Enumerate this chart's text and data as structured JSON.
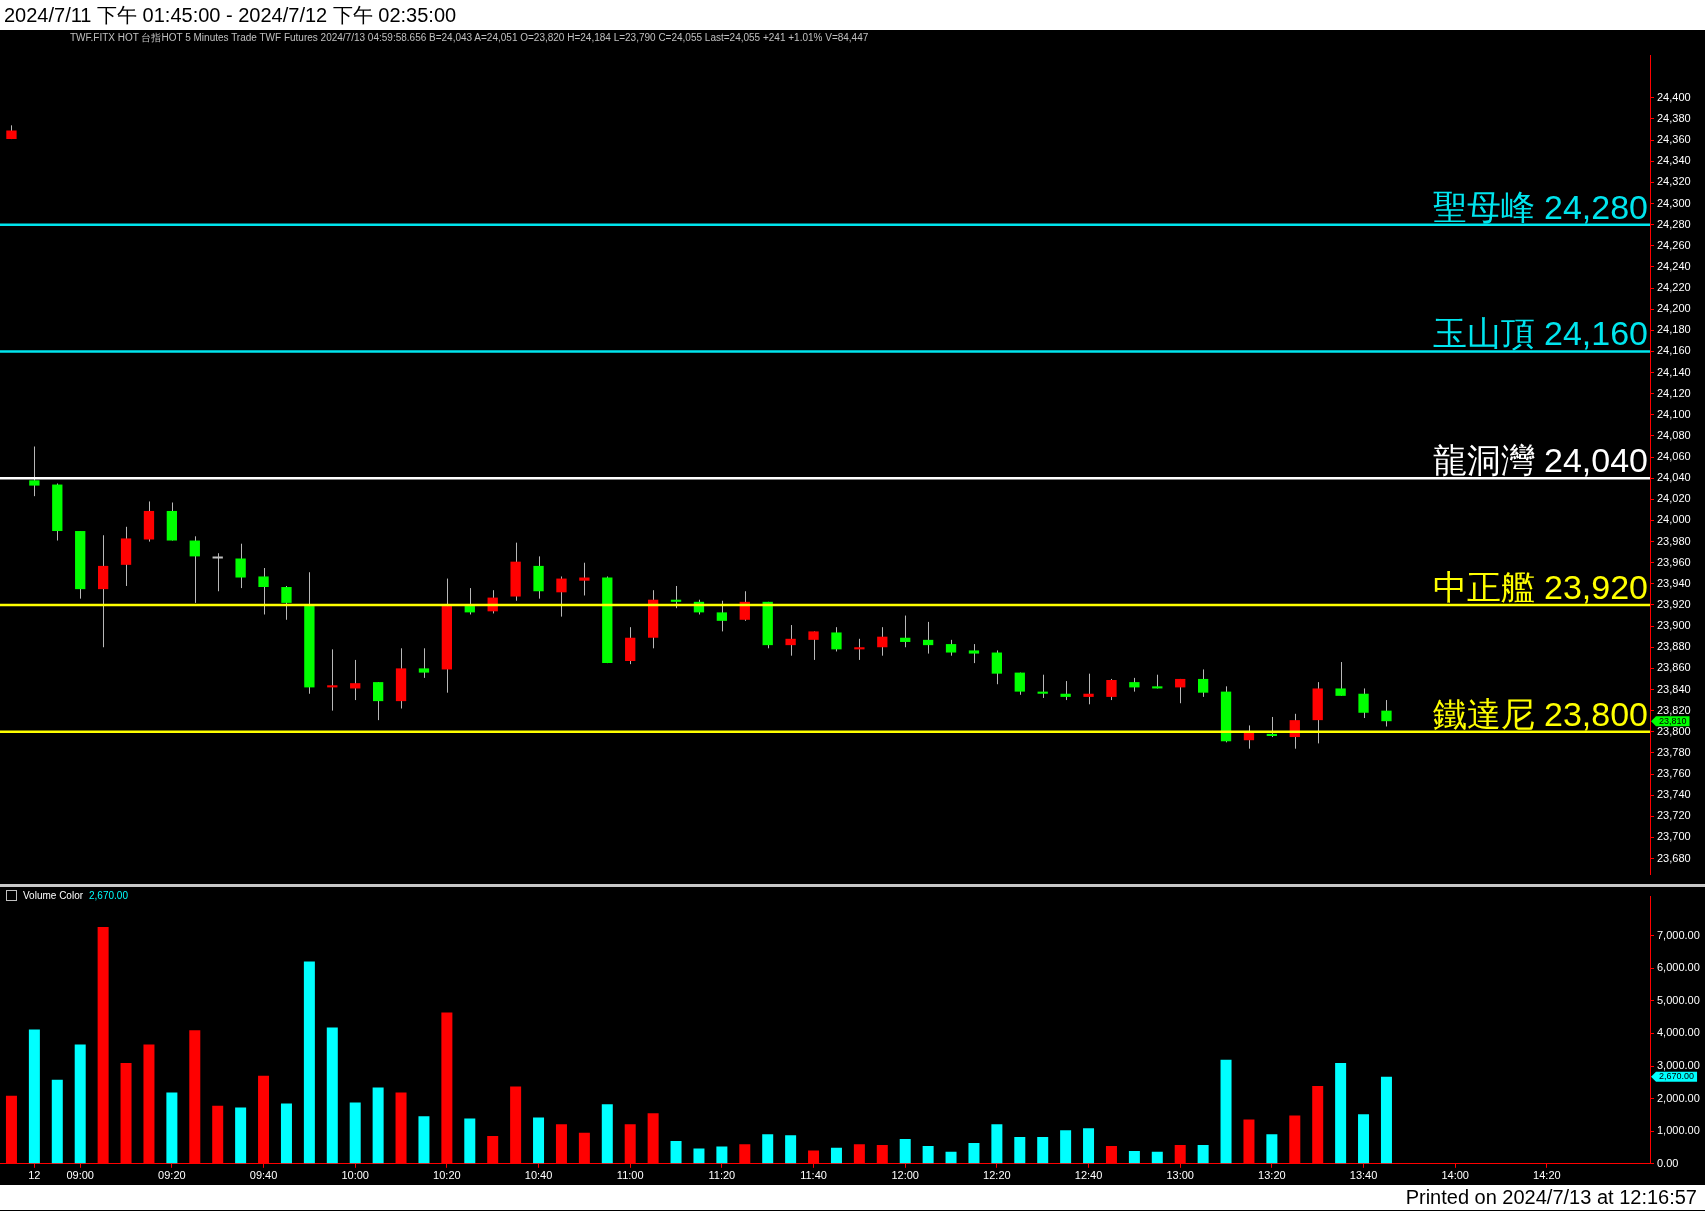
{
  "chart_data": [
    {
      "type": "candlestick",
      "title": "2024/7/11 下午 01:45:00 - 2024/7/12 下午 02:35:00",
      "subtitle": "TWF.FITX HOT 台指HOT 5 Minutes Trade TWF Futures 2024/7/13 04:59:58.656 B=24,043 A=24,051 O=23,820 H=24,184 L=23,790 C=24,055 Last=24,055 +241 +1.01% V=84,447",
      "categories": [
        null,
        null,
        null,
        null,
        null,
        null,
        null,
        null,
        null,
        null,
        null,
        null,
        null,
        null,
        null,
        null,
        null,
        null,
        null,
        null,
        null,
        null,
        null,
        null,
        null,
        null,
        null,
        null,
        null,
        null,
        null,
        null,
        null,
        null,
        null,
        null,
        null,
        null,
        null,
        null,
        null,
        null,
        null,
        null,
        null,
        null,
        null,
        null,
        null,
        null,
        null,
        null,
        null,
        null,
        null,
        null,
        null,
        null,
        null,
        null,
        null,
        null,
        null,
        null,
        null,
        null,
        null,
        null,
        null,
        null,
        null,
        null
      ],
      "ohlc": [
        [
          24361,
          24374,
          24361,
          24369
        ],
        [
          24038,
          24070,
          24023,
          24033
        ],
        [
          24034,
          24035,
          23981,
          23990
        ],
        [
          23990,
          23990,
          23926,
          23935
        ],
        [
          23935,
          23986,
          23880,
          23957
        ],
        [
          23958,
          23994,
          23938,
          23983
        ],
        [
          23982,
          24018,
          23980,
          24009
        ],
        [
          24009,
          24017,
          23981,
          23981
        ],
        [
          23981,
          23985,
          23922,
          23966
        ],
        [
          23964,
          23969,
          23933,
          23964
        ],
        [
          23964,
          23978,
          23936,
          23946
        ],
        [
          23947,
          23955,
          23911,
          23937
        ],
        [
          23937,
          23938,
          23906,
          23922
        ],
        [
          23919,
          23951,
          23836,
          23842
        ],
        [
          23842,
          23878,
          23820,
          23844
        ],
        [
          23841,
          23868,
          23830,
          23846
        ],
        [
          23847,
          23847,
          23811,
          23829
        ],
        [
          23829,
          23879,
          23822,
          23860
        ],
        [
          23860,
          23879,
          23851,
          23856
        ],
        [
          23859,
          23945,
          23837,
          23919
        ],
        [
          23919,
          23936,
          23911,
          23913
        ],
        [
          23914,
          23934,
          23912,
          23927
        ],
        [
          23928,
          23979,
          23924,
          23961
        ],
        [
          23957,
          23966,
          23926,
          23933
        ],
        [
          23932,
          23947,
          23909,
          23945
        ],
        [
          23943,
          23960,
          23929,
          23946
        ],
        [
          23946,
          23947,
          23865,
          23865
        ],
        [
          23867,
          23899,
          23864,
          23889
        ],
        [
          23889,
          23934,
          23879,
          23925
        ],
        [
          23925,
          23938,
          23917,
          23923
        ],
        [
          23923,
          23925,
          23911,
          23913
        ],
        [
          23913,
          23924,
          23895,
          23905
        ],
        [
          23906,
          23933,
          23905,
          23923
        ],
        [
          23923,
          23923,
          23879,
          23882
        ],
        [
          23882,
          23901,
          23872,
          23888
        ],
        [
          23887,
          23895,
          23868,
          23895
        ],
        [
          23894,
          23899,
          23876,
          23878
        ],
        [
          23878,
          23888,
          23868,
          23880
        ],
        [
          23880,
          23899,
          23872,
          23890
        ],
        [
          23889,
          23910,
          23880,
          23885
        ],
        [
          23887,
          23904,
          23874,
          23882
        ],
        [
          23883,
          23887,
          23872,
          23875
        ],
        [
          23877,
          23883,
          23865,
          23874
        ],
        [
          23875,
          23877,
          23845,
          23855
        ],
        [
          23856,
          23856,
          23835,
          23838
        ],
        [
          23838,
          23854,
          23832,
          23836
        ],
        [
          23836,
          23848,
          23830,
          23833
        ],
        [
          23833,
          23855,
          23826,
          23836
        ],
        [
          23833,
          23850,
          23830,
          23849
        ],
        [
          23847,
          23851,
          23838,
          23842
        ],
        [
          23843,
          23854,
          23841,
          23841
        ],
        [
          23842,
          23850,
          23827,
          23850
        ],
        [
          23850,
          23859,
          23833,
          23837
        ],
        [
          23838,
          23843,
          23790,
          23791
        ],
        [
          23792,
          23806,
          23784,
          23799
        ],
        [
          23798,
          23814,
          23795,
          23796
        ],
        [
          23795,
          23817,
          23784,
          23811
        ],
        [
          23811,
          23847,
          23789,
          23841
        ],
        [
          23841,
          23866,
          23834,
          23834
        ],
        [
          23836,
          23841,
          23813,
          23818
        ],
        [
          23820,
          23830,
          23805,
          23810
        ],
        null,
        null,
        null,
        null,
        null,
        null,
        null,
        null,
        null,
        null,
        null
      ],
      "colors": [
        "#ff0000",
        "#00ff00",
        "#00ff00",
        "#00ff00",
        "#ff0000",
        "#ff0000",
        "#ff0000",
        "#00ff00",
        "#00ff00",
        "#c0c0c0",
        "#00ff00",
        "#00ff00",
        "#00ff00",
        "#00ff00",
        "#ff0000",
        "#ff0000",
        "#00ff00",
        "#ff0000",
        "#00ff00",
        "#ff0000",
        "#00ff00",
        "#ff0000",
        "#ff0000",
        "#00ff00",
        "#ff0000",
        "#ff0000",
        "#00ff00",
        "#ff0000",
        "#ff0000",
        "#00ff00",
        "#00ff00",
        "#00ff00",
        "#ff0000",
        "#00ff00",
        "#ff0000",
        "#ff0000",
        "#00ff00",
        "#ff0000",
        "#ff0000",
        "#00ff00",
        "#00ff00",
        "#00ff00",
        "#00ff00",
        "#00ff00",
        "#00ff00",
        "#00ff00",
        "#00ff00",
        "#ff0000",
        "#ff0000",
        "#00ff00",
        "#00ff00",
        "#ff0000",
        "#00ff00",
        "#00ff00",
        "#ff0000",
        "#00ff00",
        "#ff0000",
        "#ff0000",
        "#00ff00",
        "#00ff00",
        "#00ff00",
        null,
        null,
        null,
        null,
        null,
        null,
        null,
        null,
        null,
        null,
        null
      ],
      "ylim": [
        23665,
        24440
      ],
      "yticks": [
        {
          "value": 23680,
          "label": "23,680"
        },
        {
          "value": 23700,
          "label": "23,700"
        },
        {
          "value": 23720,
          "label": "23,720"
        },
        {
          "value": 23740,
          "label": "23,740"
        },
        {
          "value": 23760,
          "label": "23,760"
        },
        {
          "value": 23780,
          "label": "23,780"
        },
        {
          "value": 23800,
          "label": "23,800"
        },
        {
          "value": 23820,
          "label": "23,820"
        },
        {
          "value": 23840,
          "label": "23,840"
        },
        {
          "value": 23860,
          "label": "23,860"
        },
        {
          "value": 23880,
          "label": "23,880"
        },
        {
          "value": 23900,
          "label": "23,900"
        },
        {
          "value": 23920,
          "label": "23,920"
        },
        {
          "value": 23940,
          "label": "23,940"
        },
        {
          "value": 23960,
          "label": "23,960"
        },
        {
          "value": 23980,
          "label": "23,980"
        },
        {
          "value": 24000,
          "label": "24,000"
        },
        {
          "value": 24020,
          "label": "24,020"
        },
        {
          "value": 24040,
          "label": "24,040"
        },
        {
          "value": 24060,
          "label": "24,060"
        },
        {
          "value": 24080,
          "label": "24,080"
        },
        {
          "value": 24100,
          "label": "24,100"
        },
        {
          "value": 24120,
          "label": "24,120"
        },
        {
          "value": 24140,
          "label": "24,140"
        },
        {
          "value": 24160,
          "label": "24,160"
        },
        {
          "value": 24180,
          "label": "24,180"
        },
        {
          "value": 24200,
          "label": "24,200"
        },
        {
          "value": 24220,
          "label": "24,220"
        },
        {
          "value": 24240,
          "label": "24,240"
        },
        {
          "value": 24260,
          "label": "24,260"
        },
        {
          "value": 24280,
          "label": "24,280"
        },
        {
          "value": 24300,
          "label": "24,300"
        },
        {
          "value": 24320,
          "label": "24,320"
        },
        {
          "value": 24340,
          "label": "24,340"
        },
        {
          "value": 24360,
          "label": "24,360"
        },
        {
          "value": 24380,
          "label": "24,380"
        },
        {
          "value": 24400,
          "label": "24,400"
        }
      ],
      "ref_lines": [
        {
          "axis": "y",
          "value": 24280,
          "label": "聖母峰 24,280",
          "color": "#00e5ee"
        },
        {
          "axis": "y",
          "value": 24160,
          "label": "玉山頂 24,160",
          "color": "#00e5ee"
        },
        {
          "axis": "y",
          "value": 24040,
          "label": "龍洞灣 24,040",
          "color": "#ffffff"
        },
        {
          "axis": "y",
          "value": 23920,
          "label": "中正艦 23,920",
          "color": "#ffff00"
        },
        {
          "axis": "y",
          "value": 23800,
          "label": "鐵達尼 23,800",
          "color": "#ffff00"
        }
      ],
      "annotations": [
        "23,810"
      ],
      "tick_labels": "y"
    },
    {
      "type": "bar",
      "title": "Volume Color",
      "categories": [
        null,
        "12",
        null,
        "09:00",
        null,
        null,
        null,
        "09:20",
        null,
        null,
        null,
        "09:40",
        null,
        null,
        null,
        "10:00",
        null,
        null,
        null,
        "10:20",
        null,
        null,
        null,
        "10:40",
        null,
        null,
        null,
        "11:00",
        null,
        null,
        null,
        "11:20",
        null,
        null,
        null,
        "11:40",
        null,
        null,
        null,
        "12:00",
        null,
        null,
        null,
        "12:20",
        null,
        null,
        null,
        "12:40",
        null,
        null,
        null,
        "13:00",
        null,
        null,
        null,
        "13:20",
        null,
        null,
        null,
        "13:40",
        null,
        null,
        null,
        "14:00",
        null,
        null,
        null,
        "14:20",
        null,
        null,
        null,
        null
      ],
      "values": [
        2090,
        4120,
        2580,
        3660,
        7270,
        3090,
        3660,
        2190,
        4100,
        1780,
        1730,
        2700,
        1850,
        6210,
        4180,
        1880,
        2340,
        2190,
        1460,
        4640,
        1390,
        850,
        2370,
        1420,
        1210,
        950,
        1830,
        1210,
        1550,
        700,
        470,
        530,
        600,
        910,
        880,
        410,
        490,
        600,
        580,
        760,
        550,
        370,
        640,
        1210,
        820,
        820,
        1030,
        1090,
        550,
        390,
        370,
        580,
        580,
        3190,
        1360,
        910,
        1480,
        2390,
        3090,
        1520,
        2670,
        null,
        null,
        null,
        null,
        null,
        null,
        null,
        null,
        null,
        null,
        null
      ],
      "colors": [
        "#ff0000",
        "#00ffff",
        "#00ffff",
        "#00ffff",
        "#ff0000",
        "#ff0000",
        "#ff0000",
        "#00ffff",
        "#ff0000",
        "#ff0000",
        "#00ffff",
        "#ff0000",
        "#00ffff",
        "#00ffff",
        "#00ffff",
        "#00ffff",
        "#00ffff",
        "#ff0000",
        "#00ffff",
        "#ff0000",
        "#00ffff",
        "#ff0000",
        "#ff0000",
        "#00ffff",
        "#ff0000",
        "#ff0000",
        "#00ffff",
        "#ff0000",
        "#ff0000",
        "#00ffff",
        "#00ffff",
        "#00ffff",
        "#ff0000",
        "#00ffff",
        "#00ffff",
        "#ff0000",
        "#00ffff",
        "#ff0000",
        "#ff0000",
        "#00ffff",
        "#00ffff",
        "#00ffff",
        "#00ffff",
        "#00ffff",
        "#00ffff",
        "#00ffff",
        "#00ffff",
        "#00ffff",
        "#ff0000",
        "#00ffff",
        "#00ffff",
        "#ff0000",
        "#00ffff",
        "#00ffff",
        "#ff0000",
        "#00ffff",
        "#ff0000",
        "#ff0000",
        "#00ffff",
        "#00ffff",
        "#00ffff",
        null,
        null,
        null,
        null,
        null,
        null,
        null,
        null,
        null,
        null,
        null
      ],
      "ylim": [
        0,
        8200
      ],
      "yticks": [
        {
          "value": 0,
          "label": "0.00"
        },
        {
          "value": 1000,
          "label": "1,000.00"
        },
        {
          "value": 2000,
          "label": "2,000.00"
        },
        {
          "value": 3000,
          "label": "3,000.00"
        },
        {
          "value": 4000,
          "label": "4,000.00"
        },
        {
          "value": 5000,
          "label": "5,000.00"
        },
        {
          "value": 6000,
          "label": "6,000.00"
        },
        {
          "value": 7000,
          "label": "7,000.00"
        }
      ],
      "annotations": [
        "2,670.00",
        "2,670.00",
        "Printed on 2024/7/13 at 12:16:57"
      ]
    }
  ]
}
